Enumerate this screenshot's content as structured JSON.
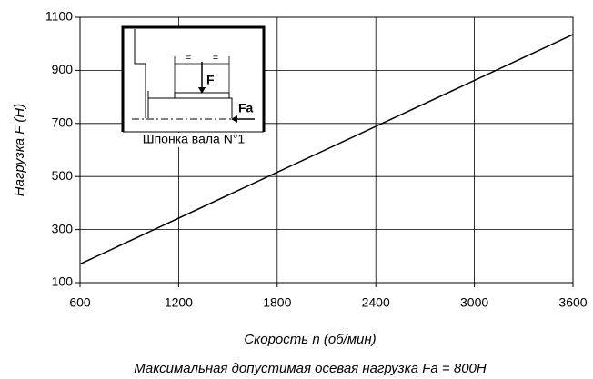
{
  "chart_data": {
    "type": "line",
    "xlabel": "Скорость n (об/мин)",
    "ylabel": "Нагрузка F (Н)",
    "caption": "Максимальная допустимая осевая нагрузка Fa = 800Н",
    "series": [
      {
        "name": "F",
        "color": "#000000",
        "x": [
          600,
          3600
        ],
        "values": [
          170,
          1035
        ]
      }
    ],
    "xlim": [
      600,
      3600
    ],
    "xticks": [
      600,
      1200,
      1800,
      2400,
      3000,
      3600
    ],
    "ylim": [
      100,
      1100
    ],
    "yticks": [
      100,
      300,
      500,
      700,
      900,
      1100
    ],
    "grid": true,
    "inset": {
      "force_label": "F",
      "axial_label": "Fa",
      "caption": "Шпонка вала N°1",
      "dim_left": "=",
      "dim_right": "="
    }
  }
}
